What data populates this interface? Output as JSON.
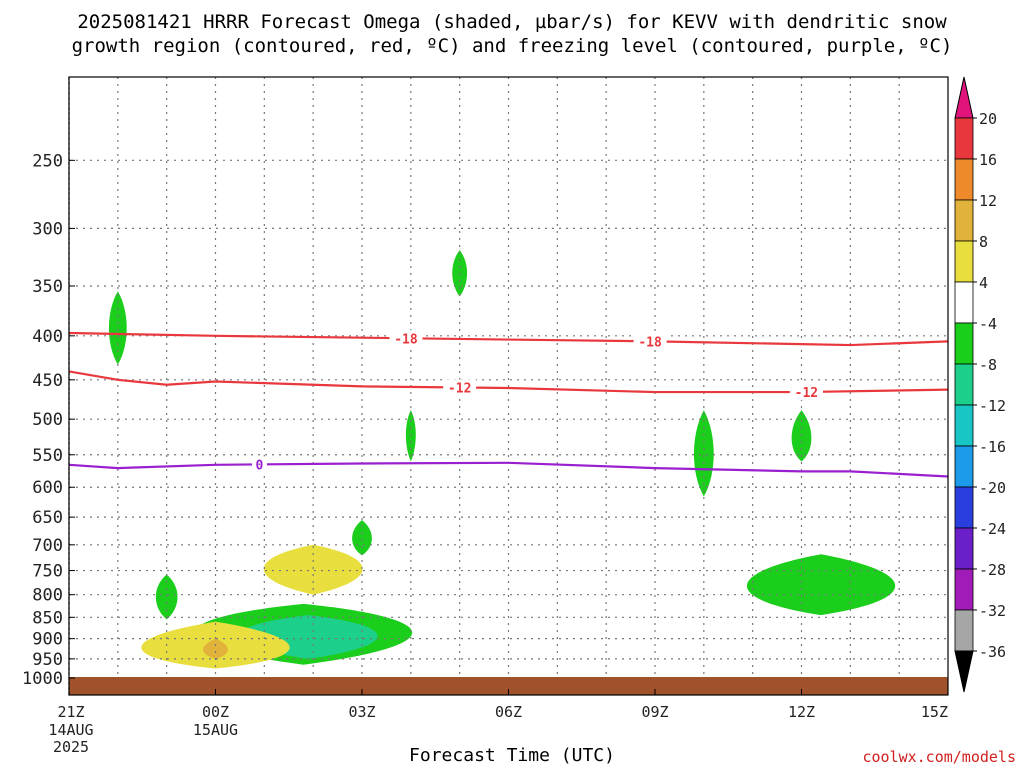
{
  "title_line1": "2025081421 HRRR Forecast Omega (shaded, µbar/s) for KEVV with dendritic snow",
  "title_line2": "growth region (contoured, red, ºC) and freezing level (contoured, purple, ºC)",
  "credit": "coolwx.com/models",
  "chart_data": {
    "type": "contour",
    "xlabel": "Forecast Time (UTC)",
    "ylabel": "",
    "x_ticks": [
      {
        "hour": 0,
        "label": "21Z",
        "sub": [
          "14AUG",
          "2025"
        ]
      },
      {
        "hour": 3,
        "label": "00Z",
        "sub": [
          "15AUG"
        ]
      },
      {
        "hour": 6,
        "label": "03Z",
        "sub": []
      },
      {
        "hour": 9,
        "label": "06Z",
        "sub": []
      },
      {
        "hour": 12,
        "label": "09Z",
        "sub": []
      },
      {
        "hour": 15,
        "label": "12Z",
        "sub": []
      },
      {
        "hour": 18,
        "label": "15Z",
        "sub": []
      }
    ],
    "xlim": [
      0,
      18
    ],
    "ylim": [
      1000,
      200
    ],
    "y_scale": "log pressure (hPa)",
    "y_ticks": [
      250,
      300,
      350,
      400,
      450,
      500,
      550,
      600,
      650,
      700,
      750,
      800,
      850,
      900,
      950,
      1000
    ],
    "grid": true,
    "colorbar": {
      "labels": [
        "20",
        "16",
        "12",
        "8",
        "4",
        "-4",
        "-8",
        "-12",
        "-16",
        "-20",
        "-24",
        "-28",
        "-32",
        "-36"
      ],
      "bins": [
        {
          "from": 16,
          "to": 20,
          "color": "#e8383d"
        },
        {
          "from": 12,
          "to": 16,
          "color": "#ee8a2a"
        },
        {
          "from": 8,
          "to": 12,
          "color": "#e2b33a"
        },
        {
          "from": 4,
          "to": 8,
          "color": "#e8df3e"
        },
        {
          "from": -4,
          "to": 4,
          "color": "#ffffff"
        },
        {
          "from": -8,
          "to": -4,
          "color": "#1cce1c"
        },
        {
          "from": -12,
          "to": -8,
          "color": "#1ccf8b"
        },
        {
          "from": -16,
          "to": -12,
          "color": "#18c6c6"
        },
        {
          "from": -20,
          "to": -16,
          "color": "#1c9bea"
        },
        {
          "from": -24,
          "to": -20,
          "color": "#2a3ee0"
        },
        {
          "from": -28,
          "to": -24,
          "color": "#6a1fc8"
        },
        {
          "from": -32,
          "to": -28,
          "color": "#a01bb8"
        },
        {
          "from": -36,
          "to": -32,
          "color": "#a6a6a6"
        }
      ],
      "top_arrow_color": "#e0147a",
      "bottom_arrow_color": "#000000"
    },
    "ground_color": "#a0522d",
    "contour_lines": [
      {
        "label": "-18",
        "color": "#e8383d",
        "points": [
          [
            0,
            397
          ],
          [
            3,
            400
          ],
          [
            6,
            402
          ],
          [
            9,
            404
          ],
          [
            12,
            406
          ],
          [
            15,
            409
          ],
          [
            16,
            410
          ],
          [
            18,
            406
          ]
        ],
        "label_hours": [
          6.9,
          11.9
        ]
      },
      {
        "label": "-12",
        "color": "#e8383d",
        "points": [
          [
            0,
            440
          ],
          [
            1,
            450
          ],
          [
            2,
            456
          ],
          [
            3,
            452
          ],
          [
            6,
            458
          ],
          [
            9,
            460
          ],
          [
            12,
            465
          ],
          [
            15,
            465
          ],
          [
            18,
            462
          ]
        ],
        "label_hours": [
          8.0,
          15.1
        ]
      },
      {
        "label": "0",
        "color": "#9a1fcf",
        "points": [
          [
            0,
            565
          ],
          [
            1,
            570
          ],
          [
            3,
            565
          ],
          [
            6,
            563
          ],
          [
            9,
            562
          ],
          [
            12,
            570
          ],
          [
            15,
            575
          ],
          [
            16,
            575
          ],
          [
            18,
            583
          ]
        ],
        "label_hours": [
          3.9
        ]
      }
    ],
    "omega_regions": [
      {
        "value": -6,
        "hour_center": 1.0,
        "p_center": 392,
        "hour_halfwidth": 0.18,
        "p_top": 355,
        "p_bottom": 432
      },
      {
        "value": -6,
        "hour_center": 8.0,
        "p_center": 338,
        "hour_halfwidth": 0.15,
        "p_top": 318,
        "p_bottom": 360
      },
      {
        "value": -6,
        "hour_center": 7.0,
        "p_center": 520,
        "hour_halfwidth": 0.1,
        "p_top": 488,
        "p_bottom": 560
      },
      {
        "value": -6,
        "hour_center": 13.0,
        "p_center": 550,
        "hour_halfwidth": 0.2,
        "p_top": 488,
        "p_bottom": 615
      },
      {
        "value": -6,
        "hour_center": 15.0,
        "p_center": 530,
        "hour_halfwidth": 0.2,
        "p_top": 488,
        "p_bottom": 560
      },
      {
        "value": -6,
        "hour_center": 6.0,
        "p_center": 690,
        "hour_halfwidth": 0.2,
        "p_top": 655,
        "p_bottom": 720
      },
      {
        "value": -6,
        "hour_center": 2.0,
        "p_center": 805,
        "hour_halfwidth": 0.22,
        "p_top": 758,
        "p_bottom": 855
      },
      {
        "value": -6,
        "hour_center": 15.4,
        "p_center": 785,
        "hour_halfwidth": 1.5,
        "p_top": 718,
        "p_bottom": 845
      },
      {
        "value": -6,
        "hour_center": 4.8,
        "p_center": 880,
        "hour_halfwidth": 2.2,
        "p_top": 820,
        "p_bottom": 965
      },
      {
        "value": -10,
        "hour_center": 4.9,
        "p_center": 890,
        "hour_halfwidth": 1.4,
        "p_top": 845,
        "p_bottom": 950
      },
      {
        "value": 6,
        "hour_center": 5.0,
        "p_center": 745,
        "hour_halfwidth": 1.0,
        "p_top": 700,
        "p_bottom": 800
      },
      {
        "value": 6,
        "hour_center": 3.0,
        "p_center": 930,
        "hour_halfwidth": 1.5,
        "p_top": 860,
        "p_bottom": 975
      },
      {
        "value": 10,
        "hour_center": 3.0,
        "p_center": 930,
        "hour_halfwidth": 0.25,
        "p_top": 900,
        "p_bottom": 950
      }
    ]
  }
}
